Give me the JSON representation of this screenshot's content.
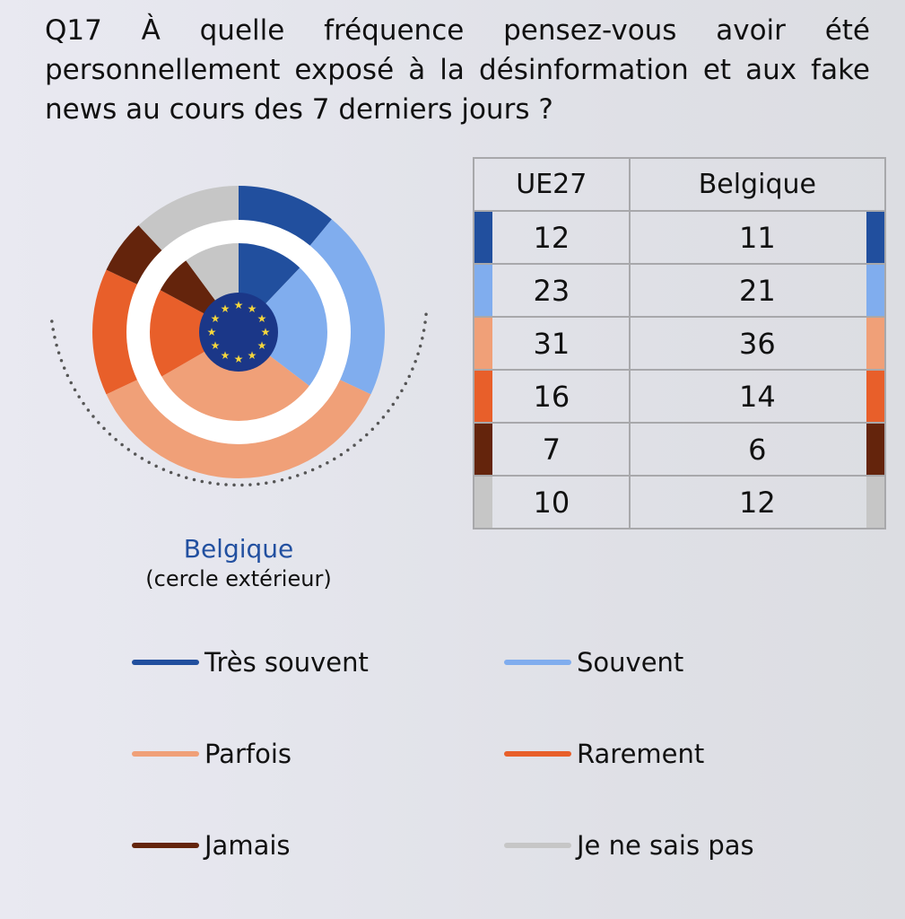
{
  "title": "Q17 À quelle fréquence pensez-vous avoir été personnellement exposé à la désinformation et aux fake news au cours des 7 derniers jours ?",
  "caption": {
    "label": "Belgique",
    "sub": "(cercle extérieur)"
  },
  "chart_data": {
    "type": "pie",
    "subtype": "nested-donut",
    "inner_series": "UE27",
    "outer_series": "Belgique",
    "categories": [
      "Très souvent",
      "Souvent",
      "Parfois",
      "Rarement",
      "Jamais",
      "Je ne sais pas"
    ],
    "colors": [
      "#214f9e",
      "#80adee",
      "#f0a078",
      "#e85f2a",
      "#64240c",
      "#c6c6c6"
    ],
    "series": [
      {
        "name": "UE27",
        "values": [
          12,
          23,
          31,
          16,
          7,
          10
        ]
      },
      {
        "name": "Belgique",
        "values": [
          11,
          21,
          36,
          14,
          6,
          12
        ]
      }
    ],
    "center_icon": "eu-flag-icon",
    "legend_placement": "bottom"
  },
  "table": {
    "headers": [
      "UE27",
      "Belgique"
    ]
  }
}
